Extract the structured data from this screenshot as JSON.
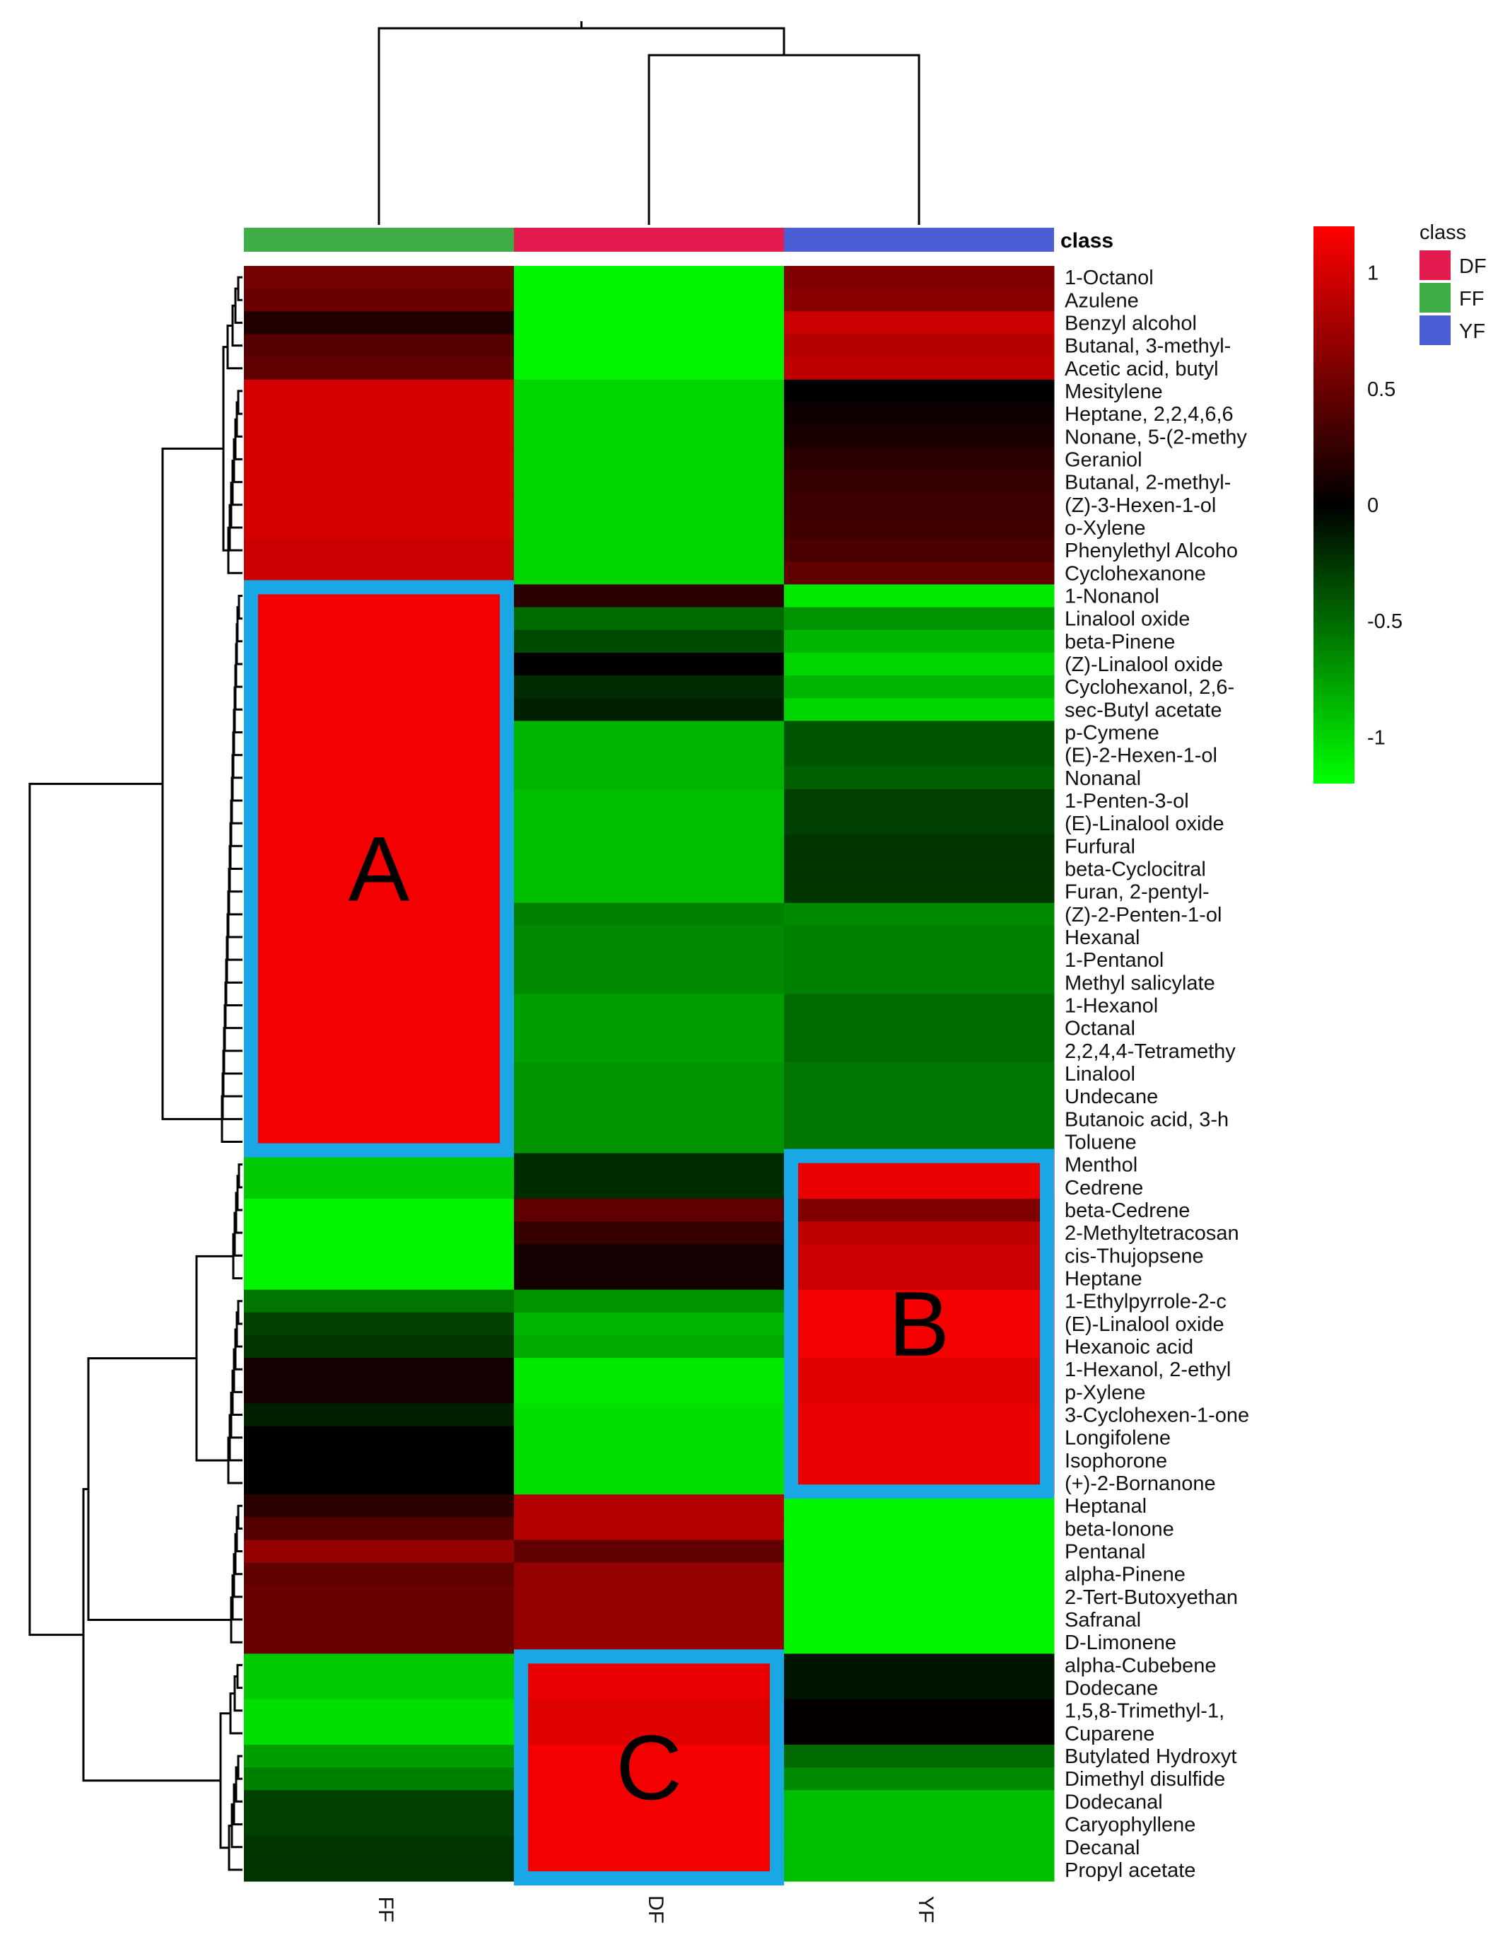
{
  "chart_data": {
    "type": "heatmap",
    "title": "",
    "class_header_label": "class",
    "columns": [
      "FF",
      "DF",
      "YF"
    ],
    "column_classes": [
      "FF",
      "DF",
      "YF"
    ],
    "rows": [
      "1-Octanol",
      "Azulene",
      "Benzyl alcohol",
      "Butanal, 3-methyl-",
      "Acetic acid, butyl",
      "Mesitylene",
      "Heptane, 2,2,4,6,6",
      "Nonane, 5-(2-methy",
      "Geraniol",
      "Butanal, 2-methyl-",
      "(Z)-3-Hexen-1-ol",
      "o-Xylene",
      "Phenylethyl Alcoho",
      "Cyclohexanone",
      "1-Nonanol",
      "Linalool oxide",
      "beta-Pinene",
      "(Z)-Linalool oxide",
      "Cyclohexanol, 2,6-",
      "sec-Butyl acetate",
      "p-Cymene",
      "(E)-2-Hexen-1-ol",
      "Nonanal",
      "1-Penten-3-ol",
      "(E)-Linalool oxide",
      "Furfural",
      "beta-Cyclocitral",
      "Furan, 2-pentyl-",
      "(Z)-2-Penten-1-ol",
      "Hexanal",
      "1-Pentanol",
      "Methyl salicylate",
      "1-Hexanol",
      "Octanal",
      "2,2,4,4-Tetramethy",
      "Linalool",
      "Undecane",
      "Butanoic acid, 3-h",
      "Toluene",
      "Menthol",
      "Cedrene",
      "beta-Cedrene",
      "2-Methyltetracosan",
      "cis-Thujopsene",
      "Heptane",
      "1-Ethylpyrrole-2-c",
      "(E)-Linalool oxide",
      "Hexanoic acid",
      "1-Hexanol, 2-ethyl",
      "p-Xylene",
      "3-Cyclohexen-1-one",
      "Longifolene",
      "Isophorone",
      "(+)-2-Bornanone",
      "Heptanal",
      "beta-Ionone",
      "Pentanal",
      "alpha-Pinene",
      "2-Tert-Butoxyethan",
      "Safranal",
      "D-Limonene",
      "alpha-Cubebene",
      "Dodecane",
      "1,5,8-Trimethyl-1,",
      "Cuparene",
      "Butylated Hydroxyt",
      "Dimethyl disulfide",
      "Dodecanal",
      "Caryophyllene",
      "Decanal",
      "Propyl acetate"
    ],
    "values": [
      [
        0.55,
        -1.15,
        0.6
      ],
      [
        0.5,
        -1.15,
        0.65
      ],
      [
        0.15,
        -1.15,
        0.95
      ],
      [
        0.4,
        -1.15,
        0.85
      ],
      [
        0.45,
        -1.15,
        0.9
      ],
      [
        1.0,
        -1.0,
        0.0
      ],
      [
        1.0,
        -1.0,
        0.08
      ],
      [
        1.0,
        -1.0,
        0.12
      ],
      [
        1.0,
        -1.0,
        0.2
      ],
      [
        1.0,
        -1.0,
        0.25
      ],
      [
        1.0,
        -1.0,
        0.28
      ],
      [
        1.0,
        -1.0,
        0.3
      ],
      [
        0.95,
        -1.0,
        0.35
      ],
      [
        0.95,
        -1.0,
        0.45
      ],
      [
        1.15,
        0.2,
        -1.1
      ],
      [
        1.15,
        -0.5,
        -0.7
      ],
      [
        1.15,
        -0.35,
        -0.85
      ],
      [
        1.15,
        0.0,
        -1.0
      ],
      [
        1.15,
        -0.2,
        -0.85
      ],
      [
        1.15,
        -0.15,
        -1.0
      ],
      [
        1.15,
        -0.85,
        -0.4
      ],
      [
        1.15,
        -0.85,
        -0.4
      ],
      [
        1.15,
        -0.85,
        -0.45
      ],
      [
        1.15,
        -0.9,
        -0.3
      ],
      [
        1.15,
        -0.9,
        -0.3
      ],
      [
        1.15,
        -0.9,
        -0.25
      ],
      [
        1.15,
        -0.9,
        -0.25
      ],
      [
        1.15,
        -0.9,
        -0.25
      ],
      [
        1.15,
        -0.6,
        -0.65
      ],
      [
        1.15,
        -0.65,
        -0.6
      ],
      [
        1.15,
        -0.65,
        -0.6
      ],
      [
        1.15,
        -0.65,
        -0.6
      ],
      [
        1.15,
        -0.75,
        -0.5
      ],
      [
        1.15,
        -0.75,
        -0.5
      ],
      [
        1.15,
        -0.75,
        -0.5
      ],
      [
        1.15,
        -0.7,
        -0.55
      ],
      [
        1.15,
        -0.7,
        -0.55
      ],
      [
        1.15,
        -0.7,
        -0.55
      ],
      [
        1.15,
        -0.7,
        -0.55
      ],
      [
        -0.95,
        -0.2,
        1.1
      ],
      [
        -0.95,
        -0.2,
        1.1
      ],
      [
        -1.15,
        0.45,
        0.6
      ],
      [
        -1.15,
        0.25,
        0.9
      ],
      [
        -1.15,
        0.1,
        0.95
      ],
      [
        -1.15,
        0.1,
        0.95
      ],
      [
        -0.55,
        -0.7,
        1.15
      ],
      [
        -0.3,
        -0.85,
        1.15
      ],
      [
        -0.25,
        -0.8,
        1.15
      ],
      [
        0.1,
        -1.1,
        1.05
      ],
      [
        0.1,
        -1.1,
        1.05
      ],
      [
        -0.15,
        -1.05,
        1.1
      ],
      [
        0.0,
        -1.05,
        1.1
      ],
      [
        0.0,
        -1.05,
        1.1
      ],
      [
        0.0,
        -1.05,
        1.1
      ],
      [
        0.2,
        0.85,
        -1.15
      ],
      [
        0.4,
        0.85,
        -1.15
      ],
      [
        0.7,
        0.45,
        -1.15
      ],
      [
        0.45,
        0.7,
        -1.15
      ],
      [
        0.5,
        0.7,
        -1.15
      ],
      [
        0.5,
        0.7,
        -1.15
      ],
      [
        0.5,
        0.7,
        -1.15
      ],
      [
        -0.95,
        1.1,
        -0.1
      ],
      [
        -0.95,
        1.1,
        -0.1
      ],
      [
        -1.05,
        1.05,
        0.02
      ],
      [
        -1.05,
        1.05,
        0.02
      ],
      [
        -0.75,
        1.15,
        -0.5
      ],
      [
        -0.6,
        1.15,
        -0.65
      ],
      [
        -0.3,
        1.15,
        -0.9
      ],
      [
        -0.3,
        1.15,
        -0.9
      ],
      [
        -0.25,
        1.15,
        -0.9
      ],
      [
        -0.25,
        1.15,
        -0.9
      ]
    ],
    "color_scale": {
      "min": -1.2,
      "max": 1.2,
      "low": "#00ff00",
      "mid": "#000000",
      "high": "#ff0000"
    },
    "colorbar_ticks": [
      "1",
      "0.5",
      "0",
      "-0.5",
      "-1"
    ],
    "colorbar_tick_values": [
      1,
      0.5,
      0,
      -0.5,
      -1
    ],
    "class_colors": {
      "DF": "#e31b4f",
      "FF": "#3fae49",
      "YF": "#4a5fd6"
    },
    "class_legend": {
      "title": "class",
      "items": [
        "DF",
        "FF",
        "YF"
      ]
    },
    "highlight_color": "#1aa7e6",
    "highlight_boxes": [
      {
        "label": "A",
        "column": "FF",
        "row_start": "1-Nonanol",
        "row_end": "Toluene"
      },
      {
        "label": "B",
        "column": "YF",
        "row_start": "Menthol",
        "row_end": "(+)-2-Bornanone"
      },
      {
        "label": "C",
        "column": "DF",
        "row_start": "alpha-Cubebene",
        "row_end": "Propyl acetate"
      }
    ]
  }
}
